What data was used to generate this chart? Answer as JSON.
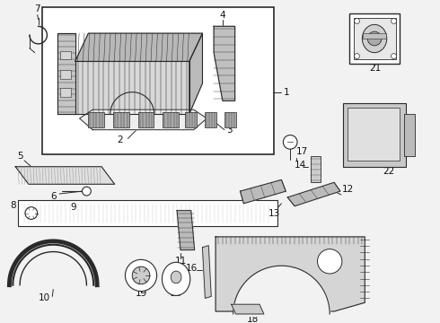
{
  "bg_color": "#f2f2f2",
  "line_color": "#2a2a2a",
  "text_color": "#111111",
  "box_bg": "#ffffff",
  "part_gray": "#c8c8c8",
  "part_light": "#e0e0e0",
  "part_dark": "#a0a0a0"
}
